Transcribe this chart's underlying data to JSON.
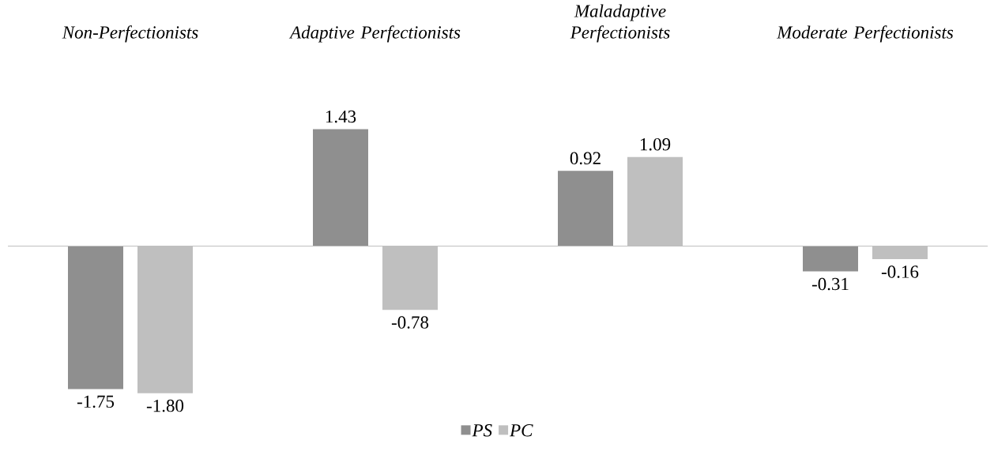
{
  "chart_data": {
    "type": "bar",
    "categories": [
      "Non-Perfectionists",
      "Adaptive Perfectionists",
      "Maladaptive Perfectionists",
      "Moderate Perfectionists"
    ],
    "series": [
      {
        "name": "PS",
        "color": "#8f8f8f",
        "values": [
          -1.75,
          1.43,
          0.92,
          -0.31
        ],
        "value_labels": [
          "-1.75",
          "1.43",
          "0.92",
          "-0.31"
        ]
      },
      {
        "name": "PC",
        "color": "#bfbfbf",
        "values": [
          -1.8,
          -0.78,
          1.09,
          -0.16
        ],
        "value_labels": [
          "-1.80",
          "-0.78",
          "1.09",
          "-0.16"
        ]
      }
    ],
    "legend": "bottom"
  }
}
